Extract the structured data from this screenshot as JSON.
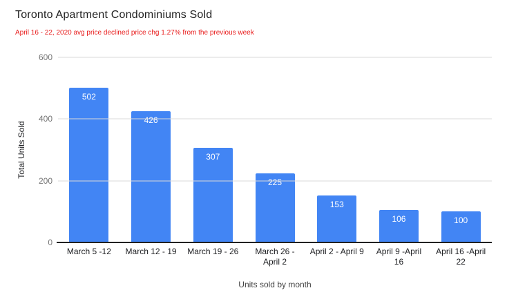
{
  "title": "Toronto Apartment Condominiums Sold",
  "subtitle": "April 16 - 22, 2020 avg price declined price chg 1.27% from the previous week",
  "colors": {
    "bar": "#4285f4",
    "grid": "#d9d9d9",
    "axis_line": "#212121",
    "tick_label": "#757575",
    "category_label": "#202124",
    "value_label": "#ffffff",
    "title": "#212121",
    "subtitle": "#e81c1c",
    "axis_title": "#424242",
    "bg": "#ffffff"
  },
  "chart_data": {
    "type": "bar",
    "title": "Toronto Apartment Condominiums Sold",
    "subtitle": "April 16 - 22, 2020 avg price declined price chg 1.27% from the previous week",
    "categories": [
      "March 5 -12",
      "March 12 - 19",
      "March 19 - 26",
      "March 26 -\nApril 2",
      "April 2 - April 9",
      "April 9 -April\n16",
      "April 16 -April\n22"
    ],
    "values": [
      502,
      426,
      307,
      225,
      153,
      106,
      100
    ],
    "xlabel": "Units sold by month",
    "ylabel": "Total Units Sold",
    "ylim": [
      0,
      600
    ],
    "yticks": [
      0,
      200,
      400,
      600
    ],
    "grid": true,
    "legend": false,
    "value_labels": true,
    "bar_color": "#4285f4"
  }
}
